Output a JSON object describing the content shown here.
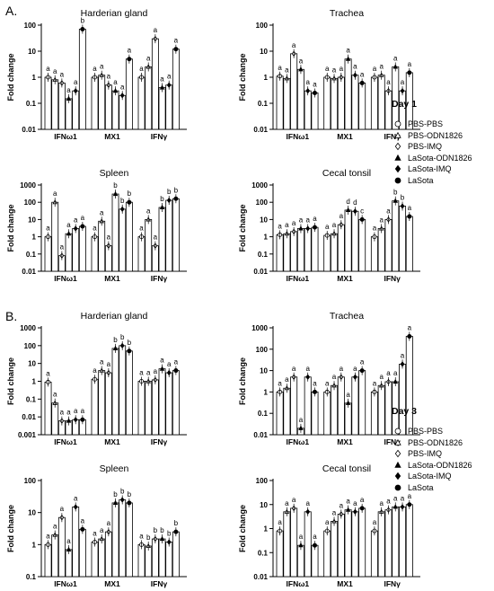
{
  "figure": {
    "sections": [
      {
        "letter": "A.",
        "day_label": "Day 1"
      },
      {
        "letter": "B.",
        "day_label": "Day 3"
      }
    ],
    "legend": [
      {
        "label": "PBS-PBS",
        "marker": "circle-open"
      },
      {
        "label": "PBS-ODN1826",
        "marker": "triangle-open"
      },
      {
        "label": "PBS-IMQ",
        "marker": "diamond-open"
      },
      {
        "label": "LaSota-ODN1826",
        "marker": "triangle-filled"
      },
      {
        "label": "LaSota-IMQ",
        "marker": "diamond-filled"
      },
      {
        "label": "LaSota",
        "marker": "circle-filled"
      }
    ],
    "colors": {
      "bar_fill": "#ffffff",
      "bar_stroke": "#000000",
      "marker": "#000000",
      "text": "#000000"
    }
  },
  "chart_data": [
    {
      "type": "bar",
      "section": "A",
      "title": "Harderian gland",
      "ylabel": "Fold change",
      "yscale": "log",
      "ylim": [
        0.01,
        100
      ],
      "yticks": [
        "0.01",
        "0.1",
        "1",
        "10",
        "100"
      ],
      "categories": [
        "IFNω1",
        "MX1",
        "IFNγ"
      ],
      "series": [
        {
          "name": "PBS-PBS",
          "values": [
            1,
            1,
            1
          ]
        },
        {
          "name": "PBS-ODN1826",
          "values": [
            0.8,
            1.2,
            2.5
          ]
        },
        {
          "name": "PBS-IMQ",
          "values": [
            0.6,
            0.5,
            30
          ]
        },
        {
          "name": "LaSota-ODN1826",
          "values": [
            0.15,
            0.3,
            0.4
          ]
        },
        {
          "name": "LaSota-IMQ",
          "values": [
            0.3,
            0.2,
            0.5
          ]
        },
        {
          "name": "LaSota",
          "values": [
            70,
            5,
            12
          ]
        }
      ],
      "letters": [
        [
          "a",
          "a",
          "a",
          "a",
          "a",
          "b"
        ],
        [
          "a",
          "a",
          "a",
          "a",
          "a",
          "a"
        ],
        [
          "a",
          "a",
          "a",
          "a",
          "a",
          "a"
        ]
      ]
    },
    {
      "type": "bar",
      "section": "A",
      "title": "Trachea",
      "ylabel": "Fold change",
      "yscale": "log",
      "ylim": [
        0.01,
        100
      ],
      "yticks": [
        "0.01",
        "0.1",
        "1",
        "10",
        "100"
      ],
      "categories": [
        "IFNω1",
        "MX1",
        "IFNγ"
      ],
      "series": [
        {
          "name": "PBS-PBS",
          "values": [
            1.1,
            1,
            1
          ]
        },
        {
          "name": "PBS-ODN1826",
          "values": [
            0.9,
            0.9,
            1.2
          ]
        },
        {
          "name": "PBS-IMQ",
          "values": [
            8,
            1,
            0.3
          ]
        },
        {
          "name": "LaSota-ODN1826",
          "values": [
            2,
            5,
            2.5
          ]
        },
        {
          "name": "LaSota-IMQ",
          "values": [
            0.3,
            1.2,
            0.3
          ]
        },
        {
          "name": "LaSota",
          "values": [
            0.25,
            0.6,
            1.5
          ]
        }
      ],
      "letters": [
        [
          "a",
          "a",
          "a",
          "a",
          "a",
          "a"
        ],
        [
          "a",
          "a",
          "a",
          "a",
          "a",
          "a"
        ],
        [
          "a",
          "a",
          "a",
          "a",
          "a",
          "a"
        ]
      ]
    },
    {
      "type": "bar",
      "section": "A",
      "title": "Spleen",
      "ylabel": "Fold change",
      "yscale": "log",
      "ylim": [
        0.01,
        1000
      ],
      "yticks": [
        "0.01",
        "0.1",
        "1",
        "10",
        "100",
        "1000"
      ],
      "categories": [
        "IFNω1",
        "MX1",
        "IFNγ"
      ],
      "series": [
        {
          "name": "PBS-PBS",
          "values": [
            1,
            1,
            1
          ]
        },
        {
          "name": "PBS-ODN1826",
          "values": [
            100,
            8,
            10
          ]
        },
        {
          "name": "PBS-IMQ",
          "values": [
            0.08,
            0.3,
            0.3
          ]
        },
        {
          "name": "LaSota-ODN1826",
          "values": [
            1.5,
            300,
            50
          ]
        },
        {
          "name": "LaSota-IMQ",
          "values": [
            3,
            40,
            130
          ]
        },
        {
          "name": "LaSota",
          "values": [
            4,
            100,
            160
          ]
        }
      ],
      "letters": [
        [
          "a",
          "a",
          "a",
          "a",
          "a",
          "a"
        ],
        [
          "a",
          "a",
          "a",
          "b",
          "b",
          "b"
        ],
        [
          "a",
          "a",
          "a",
          "b",
          "b",
          "b"
        ]
      ]
    },
    {
      "type": "bar",
      "section": "A",
      "title": "Cecal tonsil",
      "ylabel": "Fold change",
      "yscale": "log",
      "ylim": [
        0.01,
        1000
      ],
      "yticks": [
        "0.01",
        "0.1",
        "1",
        "10",
        "100",
        "1000"
      ],
      "categories": [
        "IFNω1",
        "MX1",
        "IFNγ"
      ],
      "series": [
        {
          "name": "PBS-PBS",
          "values": [
            1.3,
            1.2,
            1
          ]
        },
        {
          "name": "PBS-ODN1826",
          "values": [
            1.5,
            1.5,
            3
          ]
        },
        {
          "name": "PBS-IMQ",
          "values": [
            2,
            5,
            10
          ]
        },
        {
          "name": "LaSota-ODN1826",
          "values": [
            3,
            35,
            120
          ]
        },
        {
          "name": "LaSota-IMQ",
          "values": [
            3,
            30,
            60
          ]
        },
        {
          "name": "LaSota",
          "values": [
            3.5,
            10,
            15
          ]
        }
      ],
      "letters": [
        [
          "a",
          "a",
          "a",
          "a",
          "a",
          "a"
        ],
        [
          "a",
          "a",
          "a",
          "d",
          "d",
          "c"
        ],
        [
          "a",
          "a",
          "a",
          "b",
          "b",
          "a"
        ]
      ]
    },
    {
      "type": "bar",
      "section": "B",
      "title": "Harderian gland",
      "ylabel": "Fold change",
      "yscale": "log",
      "ylim": [
        0.001,
        1000
      ],
      "yticks": [
        "0.001",
        "0.01",
        "0.1",
        "1",
        "10",
        "100",
        "1000"
      ],
      "categories": [
        "IFNω1",
        "MX1",
        "IFNγ"
      ],
      "series": [
        {
          "name": "PBS-PBS",
          "values": [
            0.9,
            1.3,
            1
          ]
        },
        {
          "name": "PBS-ODN1826",
          "values": [
            0.06,
            4,
            1
          ]
        },
        {
          "name": "PBS-IMQ",
          "values": [
            0.006,
            3,
            1.2
          ]
        },
        {
          "name": "LaSota-ODN1826",
          "values": [
            0.006,
            70,
            5
          ]
        },
        {
          "name": "LaSota-IMQ",
          "values": [
            0.007,
            100,
            3
          ]
        },
        {
          "name": "LaSota",
          "values": [
            0.007,
            50,
            4
          ]
        }
      ],
      "letters": [
        [
          "a",
          "a",
          "a",
          "a",
          "a",
          "a"
        ],
        [
          "a",
          "a",
          "a",
          "b",
          "b",
          "b"
        ],
        [
          "a",
          "a",
          "a",
          "a",
          "a",
          "a"
        ]
      ]
    },
    {
      "type": "bar",
      "section": "B",
      "title": "Trachea",
      "ylabel": "Fold change",
      "yscale": "log",
      "ylim": [
        0.01,
        1000
      ],
      "yticks": [
        "0.01",
        "0.1",
        "1",
        "10",
        "100",
        "1000"
      ],
      "categories": [
        "IFNω1",
        "MX1",
        "IFNγ"
      ],
      "series": [
        {
          "name": "PBS-PBS",
          "values": [
            1,
            1,
            1
          ]
        },
        {
          "name": "PBS-ODN1826",
          "values": [
            1.5,
            2,
            2
          ]
        },
        {
          "name": "PBS-IMQ",
          "values": [
            5,
            5,
            3
          ]
        },
        {
          "name": "LaSota-ODN1826",
          "values": [
            0.02,
            0.3,
            3
          ]
        },
        {
          "name": "LaSota-IMQ",
          "values": [
            5,
            5,
            20
          ]
        },
        {
          "name": "LaSota",
          "values": [
            1,
            10,
            400
          ]
        }
      ],
      "letters": [
        [
          "a",
          "a",
          "a",
          "a",
          "a",
          "a"
        ],
        [
          "a",
          "a",
          "a",
          "a",
          "a",
          "a"
        ],
        [
          "a",
          "a",
          "a",
          "a",
          "a",
          "a"
        ]
      ]
    },
    {
      "type": "bar",
      "section": "B",
      "title": "Spleen",
      "ylabel": "Fold change",
      "yscale": "log",
      "ylim": [
        0.1,
        100
      ],
      "yticks": [
        "0.1",
        "1",
        "10",
        "100"
      ],
      "categories": [
        "IFNω1",
        "MX1",
        "IFNγ"
      ],
      "series": [
        {
          "name": "PBS-PBS",
          "values": [
            1,
            1.2,
            1
          ]
        },
        {
          "name": "PBS-ODN1826",
          "values": [
            2,
            1.5,
            0.9
          ]
        },
        {
          "name": "PBS-IMQ",
          "values": [
            7,
            2.5,
            1.5
          ]
        },
        {
          "name": "LaSota-ODN1826",
          "values": [
            0.7,
            20,
            1.5
          ]
        },
        {
          "name": "LaSota-IMQ",
          "values": [
            15,
            25,
            1.2
          ]
        },
        {
          "name": "LaSota",
          "values": [
            3,
            20,
            2.5
          ]
        }
      ],
      "letters": [
        [
          "a",
          "a",
          "a",
          "a",
          "a",
          "a"
        ],
        [
          "a",
          "a",
          "a",
          "b",
          "b",
          "b"
        ],
        [
          "a",
          "b",
          "b",
          "b",
          "b",
          "b"
        ]
      ]
    },
    {
      "type": "bar",
      "section": "B",
      "title": "Cecal tonsil",
      "ylabel": "Fold change",
      "yscale": "log",
      "ylim": [
        0.01,
        100
      ],
      "yticks": [
        "0.01",
        "0.1",
        "1",
        "10",
        "100"
      ],
      "categories": [
        "IFNω1",
        "MX1",
        "IFNγ"
      ],
      "series": [
        {
          "name": "PBS-PBS",
          "values": [
            0.8,
            0.8,
            0.8
          ]
        },
        {
          "name": "PBS-ODN1826",
          "values": [
            5,
            2,
            5
          ]
        },
        {
          "name": "PBS-IMQ",
          "values": [
            7,
            4,
            6
          ]
        },
        {
          "name": "LaSota-ODN1826",
          "values": [
            0.2,
            6,
            8
          ]
        },
        {
          "name": "LaSota-IMQ",
          "values": [
            5,
            5,
            8
          ]
        },
        {
          "name": "LaSota",
          "values": [
            0.2,
            7,
            10
          ]
        }
      ],
      "letters": [
        [
          "a",
          "a",
          "a",
          "a",
          "a",
          "a"
        ],
        [
          "a",
          "a",
          "a",
          "a",
          "a",
          "a"
        ],
        [
          "a",
          "a",
          "a",
          "a",
          "a",
          "a"
        ]
      ]
    }
  ]
}
